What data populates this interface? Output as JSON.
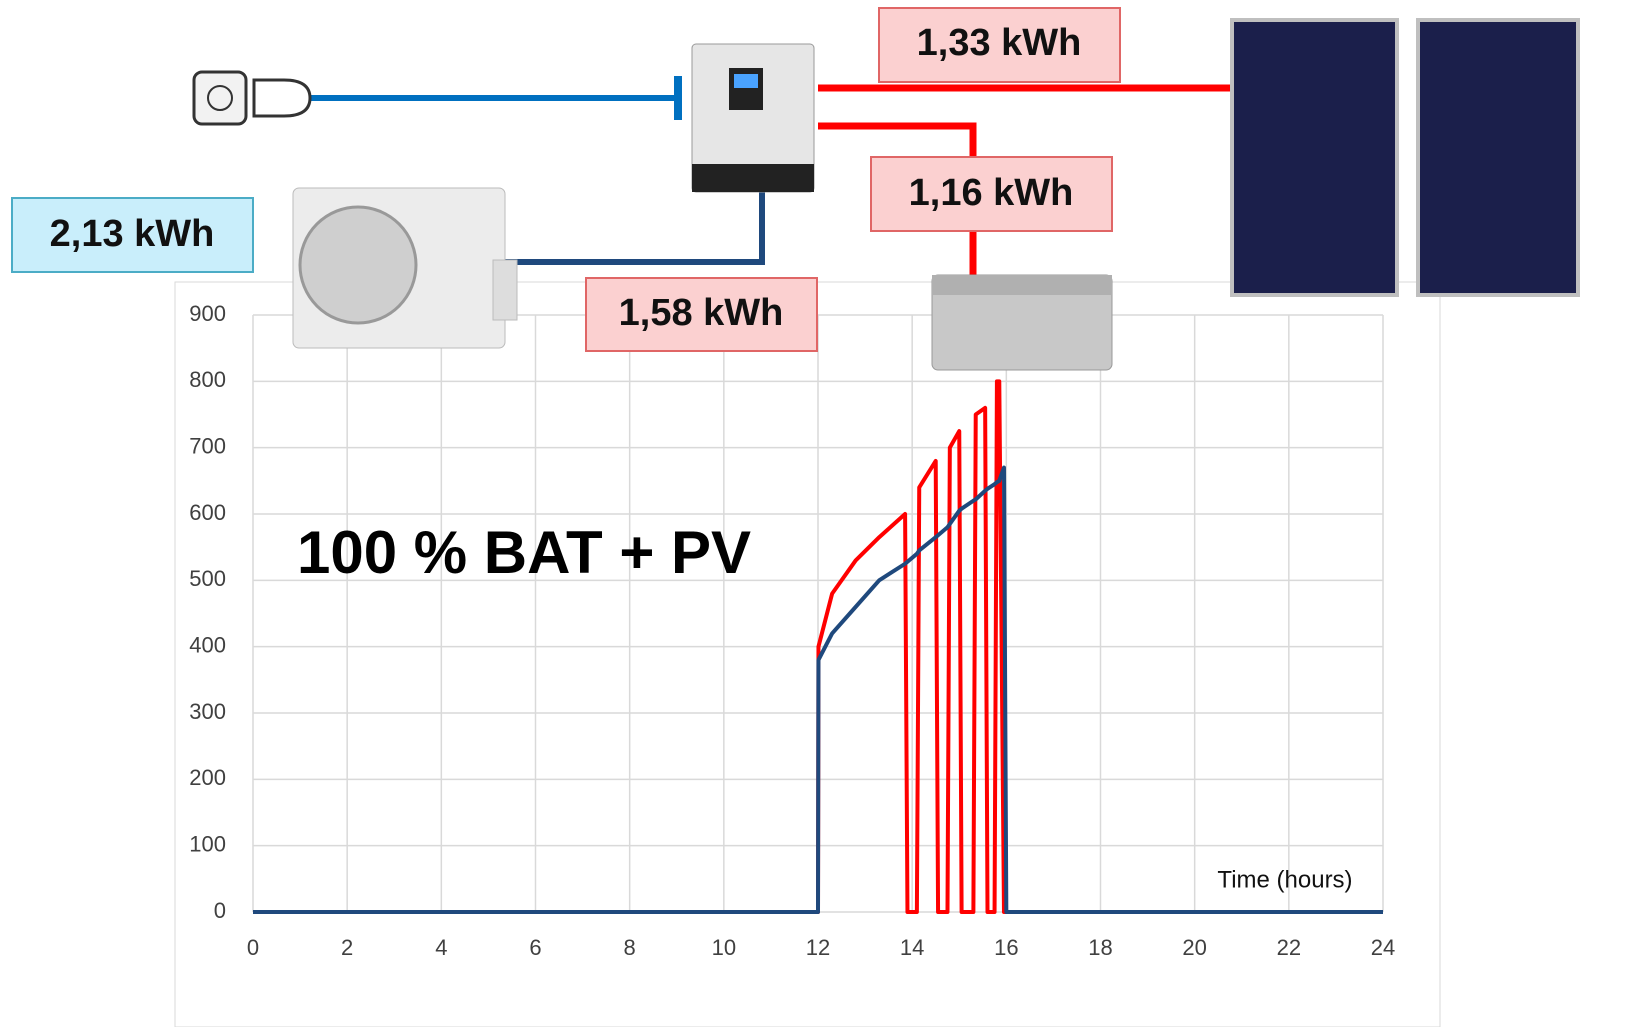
{
  "chart_data": {
    "type": "line",
    "annotation": "100 % BAT + PV",
    "x_label": "Time (hours)",
    "energy_labels": {
      "air_conditioner": "2,13 kWh",
      "pv_panels": "1,33 kWh",
      "battery": "1,16 kWh",
      "inverter_output": "1,58 kWh"
    },
    "x": [
      0,
      12,
      12.01,
      12.3,
      12.8,
      13.3,
      13.85,
      13.9,
      14.1,
      14.15,
      14.5,
      14.55,
      14.75,
      14.8,
      15.0,
      15.05,
      15.3,
      15.35,
      15.55,
      15.6,
      15.75,
      15.8,
      15.85,
      15.95,
      16,
      24
    ],
    "series": [
      {
        "color": "#ff0000",
        "values": [
          0,
          0,
          400,
          480,
          530,
          565,
          600,
          0,
          0,
          640,
          680,
          0,
          0,
          700,
          725,
          0,
          0,
          750,
          760,
          0,
          0,
          800,
          800,
          0,
          0,
          0
        ]
      },
      {
        "color": "#1f497d",
        "values": [
          0,
          0,
          380,
          420,
          460,
          500,
          525,
          528,
          540,
          545,
          565,
          568,
          580,
          585,
          605,
          608,
          620,
          622,
          635,
          638,
          645,
          648,
          650,
          670,
          0,
          0
        ]
      }
    ],
    "xlim": [
      0,
      24
    ],
    "xticks": [
      0,
      2,
      4,
      6,
      8,
      10,
      12,
      14,
      16,
      18,
      20,
      22,
      24
    ],
    "ylim": [
      0,
      900
    ],
    "yticks": [
      0,
      100,
      200,
      300,
      400,
      500,
      600,
      700,
      800,
      900
    ],
    "grid": true
  }
}
